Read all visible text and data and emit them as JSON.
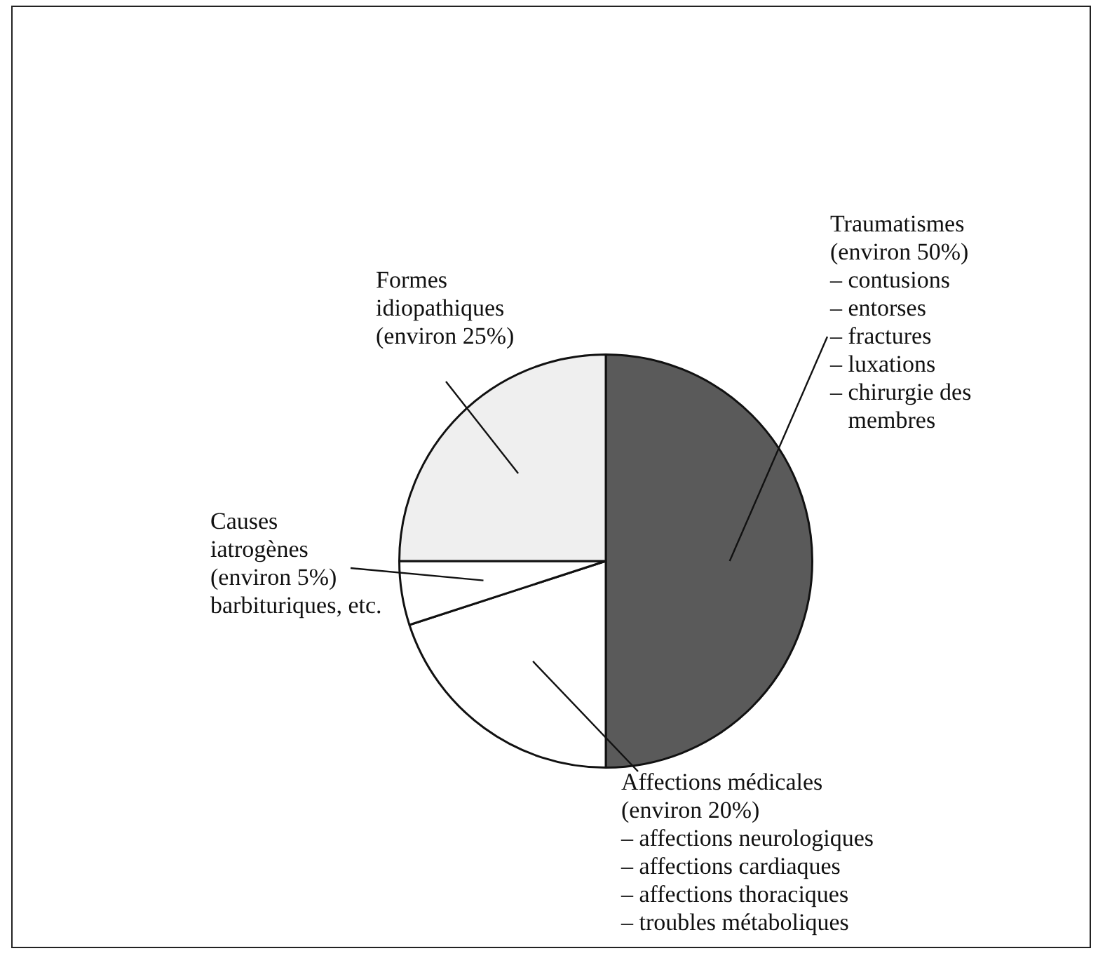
{
  "chart_data": {
    "type": "pie",
    "categories": [
      "Traumatismes",
      "Affections médicales",
      "Causes\niatrogènes",
      "Formes\nidiopathiques"
    ],
    "values": [
      50,
      20,
      5,
      25
    ],
    "value_labels": [
      "(environ 50%)",
      "(environ 20%)",
      "(environ 5%)",
      "(environ 25%)"
    ],
    "colors": [
      "#5a5a5a",
      "#ffffff",
      "#ffffff",
      "#efefef"
    ],
    "annotations": [
      {
        "text": "– contusions\n– entorses\n– fractures\n– luxations\n– chirurgie des\n   membres",
        "x": "Traumatismes"
      },
      {
        "text": "– affections neurologiques\n– affections cardiaques\n– affections thoraciques\n– troubles métaboliques",
        "x": "Affections médicales"
      },
      {
        "text": "barbituriques, etc.",
        "x": "Causes\niatrogènes"
      }
    ],
    "legend": false
  }
}
